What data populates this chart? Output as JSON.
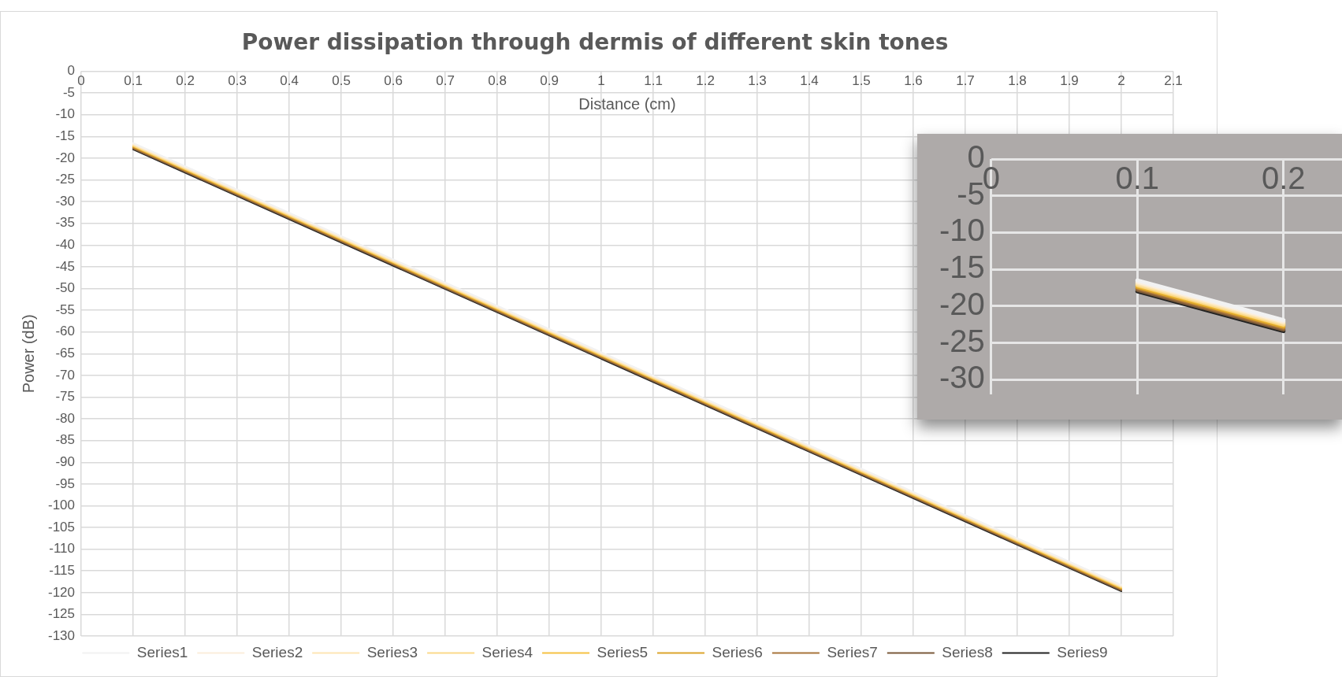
{
  "chart_data": [
    {
      "type": "line",
      "title": "Power dissipation through dermis of different skin tones",
      "xlabel": "Distance (cm)",
      "ylabel": "Power (dB)",
      "x": [
        0.1,
        2
      ],
      "series": [
        {
          "name": "Series1",
          "color": "#f2f2f2",
          "values": [
            -16.5,
            -118.2
          ]
        },
        {
          "name": "Series2",
          "color": "#fbeedb",
          "values": [
            -16.7,
            -118.4
          ]
        },
        {
          "name": "Series3",
          "color": "#fde6b3",
          "values": [
            -16.9,
            -118.6
          ]
        },
        {
          "name": "Series4",
          "color": "#fbd98a",
          "values": [
            -17.1,
            -118.8
          ]
        },
        {
          "name": "Series5",
          "color": "#f5c242",
          "values": [
            -17.2,
            -118.9
          ]
        },
        {
          "name": "Series6",
          "color": "#dca52c",
          "values": [
            -17.4,
            -119.1
          ]
        },
        {
          "name": "Series7",
          "color": "#a8743a",
          "values": [
            -17.6,
            -119.3
          ]
        },
        {
          "name": "Series8",
          "color": "#7a5a3a",
          "values": [
            -17.8,
            -119.5
          ]
        },
        {
          "name": "Series9",
          "color": "#222222",
          "values": [
            -18.0,
            -119.7
          ]
        }
      ],
      "xlim": [
        0,
        2.1
      ],
      "xticks": [
        0,
        0.1,
        0.2,
        0.3,
        0.4,
        0.5,
        0.6,
        0.7,
        0.8,
        0.9,
        1,
        1.1,
        1.2,
        1.3,
        1.4,
        1.5,
        1.6,
        1.7,
        1.8,
        1.9,
        2,
        2.1
      ],
      "ylim": [
        -130,
        0
      ],
      "yticks": [
        0,
        -5,
        -10,
        -15,
        -20,
        -25,
        -30,
        -35,
        -40,
        -45,
        -50,
        -55,
        -60,
        -65,
        -70,
        -75,
        -80,
        -85,
        -90,
        -95,
        -100,
        -105,
        -110,
        -115,
        -120,
        -125,
        -130
      ],
      "grid": true,
      "legend": "bottom",
      "marker": "none"
    },
    {
      "type": "line",
      "x": [
        0.1,
        0.2
      ],
      "series": [
        {
          "color": "#f2f2f2",
          "values": [
            -16.5,
            -21.9
          ]
        },
        {
          "color": "#fbeedb",
          "values": [
            -16.7,
            -22.1
          ]
        },
        {
          "color": "#fde6b3",
          "values": [
            -16.9,
            -22.3
          ]
        },
        {
          "color": "#fbd98a",
          "values": [
            -17.1,
            -22.5
          ]
        },
        {
          "color": "#f5c242",
          "values": [
            -17.2,
            -22.6
          ]
        },
        {
          "color": "#dca52c",
          "values": [
            -17.4,
            -22.8
          ]
        },
        {
          "color": "#a8743a",
          "values": [
            -17.6,
            -23.0
          ]
        },
        {
          "color": "#7a5a3a",
          "values": [
            -17.8,
            -23.2
          ]
        },
        {
          "color": "#222222",
          "values": [
            -18.0,
            -23.4
          ]
        }
      ],
      "xlim": [
        0,
        0.24
      ],
      "xticks": [
        0,
        0.1,
        0.2
      ],
      "ylim": [
        -32,
        0
      ],
      "yticks": [
        0,
        -5,
        -10,
        -15,
        -20,
        -25,
        -30
      ],
      "grid": true,
      "marker": "none"
    }
  ]
}
